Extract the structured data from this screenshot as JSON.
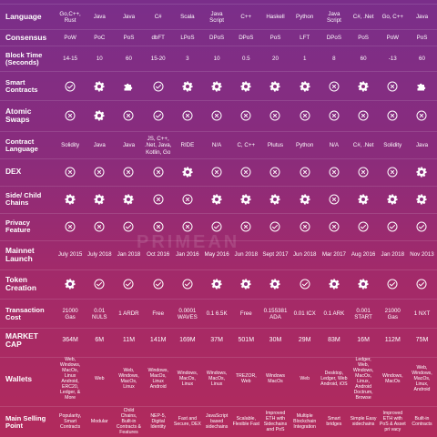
{
  "columns": 15,
  "rows": [
    {
      "label": "Language",
      "values": [
        "Go,C++, Rust",
        "Java",
        "Java",
        "C#",
        "Scala",
        "Java Script",
        "C++",
        "Haskell",
        "Python",
        "Java Script",
        "C#, .Net",
        "Go, C++",
        "Java"
      ]
    },
    {
      "label": "Consensus",
      "values": [
        "PoW",
        "PoC",
        "PoS",
        "dbFT",
        "LPoS",
        "DPoS",
        "DPoS",
        "PoS",
        "LFT",
        "DPoS",
        "PoS",
        "PoW",
        "PoS"
      ]
    },
    {
      "label": "Block Time (Seconds)",
      "values": [
        "14-15",
        "10",
        "60",
        "15-20",
        "3",
        "10",
        "0.5",
        "20",
        "1",
        "8",
        "60",
        "-13",
        "60"
      ]
    },
    {
      "label": "Smart Contracts",
      "values": [
        "check",
        "gear",
        "puzzle",
        "check",
        "gear",
        "gear",
        "gear",
        "gear",
        "gear",
        "cross",
        "gear",
        "cross",
        "puzzle"
      ]
    },
    {
      "label": "Atomic Swaps",
      "values": [
        "cross",
        "gear",
        "cross",
        "check",
        "cross",
        "cross",
        "cross",
        "cross",
        "cross",
        "cross",
        "cross",
        "cross",
        "cross"
      ]
    },
    {
      "label": "Contract Language",
      "values": [
        "Solidity",
        "Java",
        "Java",
        "JS, C++, .Net, Java, Kotlin, Go",
        "RIDE",
        "N/A",
        "C, C++",
        "Plutus",
        "Python",
        "N/A",
        "C#, .Net",
        "Solidity",
        "Java"
      ]
    },
    {
      "label": "DEX",
      "values": [
        "cross",
        "cross",
        "cross",
        "cross",
        "gear",
        "cross",
        "cross",
        "cross",
        "cross",
        "cross",
        "cross",
        "cross",
        "gear"
      ]
    },
    {
      "label": "Side/ Child Chains",
      "values": [
        "gear",
        "gear",
        "gear",
        "cross",
        "cross",
        "gear",
        "gear",
        "gear",
        "gear",
        "cross",
        "gear",
        "gear",
        "gear"
      ]
    },
    {
      "label": "Privacy Feature",
      "values": [
        "cross",
        "cross",
        "check",
        "cross",
        "cross",
        "check",
        "cross",
        "check",
        "cross",
        "cross",
        "check",
        "check",
        "check"
      ]
    },
    {
      "label": "Mainnet Launch",
      "values": [
        "July 2015",
        "July 2018",
        "Jan 2018",
        "Oct 2016",
        "Jan 2016",
        "May 2016",
        "Jun 2018",
        "Sept 2017",
        "Jun 2018",
        "Mar 2017",
        "Aug 2016",
        "Jan 2018",
        "Nov 2013"
      ]
    },
    {
      "label": "Token Creation",
      "values": [
        "gear",
        "check",
        "check",
        "check",
        "check",
        "gear",
        "gear",
        "gear",
        "check",
        "gear",
        "gear",
        "check",
        "check"
      ]
    },
    {
      "label": "Transaction Cost",
      "values": [
        "21000 Gas",
        "0.01 NULS",
        "1 ARDR",
        "Free",
        "0.0001 WAVES",
        "0.1 6.5K",
        "Free",
        "0.155381 ADA",
        "0.01 ICX",
        "0.1 ARK",
        "0.001 START",
        "21000 Gas",
        "1 NXT"
      ]
    },
    {
      "label": "MARKET CAP",
      "values": [
        "364M",
        "6M",
        "11M",
        "141M",
        "169M",
        "37M",
        "501M",
        "30M",
        "29M",
        "83M",
        "16M",
        "112M",
        "75M"
      ]
    },
    {
      "label": "Wallets",
      "values": [
        "Web, Windows, MacOs, Linux Android, ERC20, Ledger, & More",
        "Web",
        "Web, Windows, MacOs, Linux",
        "Windows, MacOs, Linux Android",
        "Windows, MacOs, Linux",
        "Windows, MacOs, Linux",
        "TREZOR, Web",
        "Windows MacOs",
        "Web",
        "Desktop, Ledger, Web Android, iOS",
        "Ledger, Web, Windows, MacOs, Linux, Android Doctrum, Browse",
        "Windows, MacOs",
        "Web, Windows, MacOs, Linux, Android"
      ]
    },
    {
      "label": "Main Selling Point",
      "values": [
        "Popularity, Smart Contracts",
        "Modular",
        "Child Chains, Built-in Contracts & Features",
        "NEP-5, Digital Identity",
        "Fast and Secure, DEX",
        "JavaScript based sidechains",
        "Scalable, Flexible Fast",
        "Improved ETH with Sidechains and PoS",
        "Multiple Blockchain Integration",
        "Smart bridges",
        "Simple Easy sidechains",
        "Improved ETH with PoS & Asset pri vacy",
        "Built-in Contracts"
      ]
    }
  ],
  "watermark": "PRIMEAN"
}
